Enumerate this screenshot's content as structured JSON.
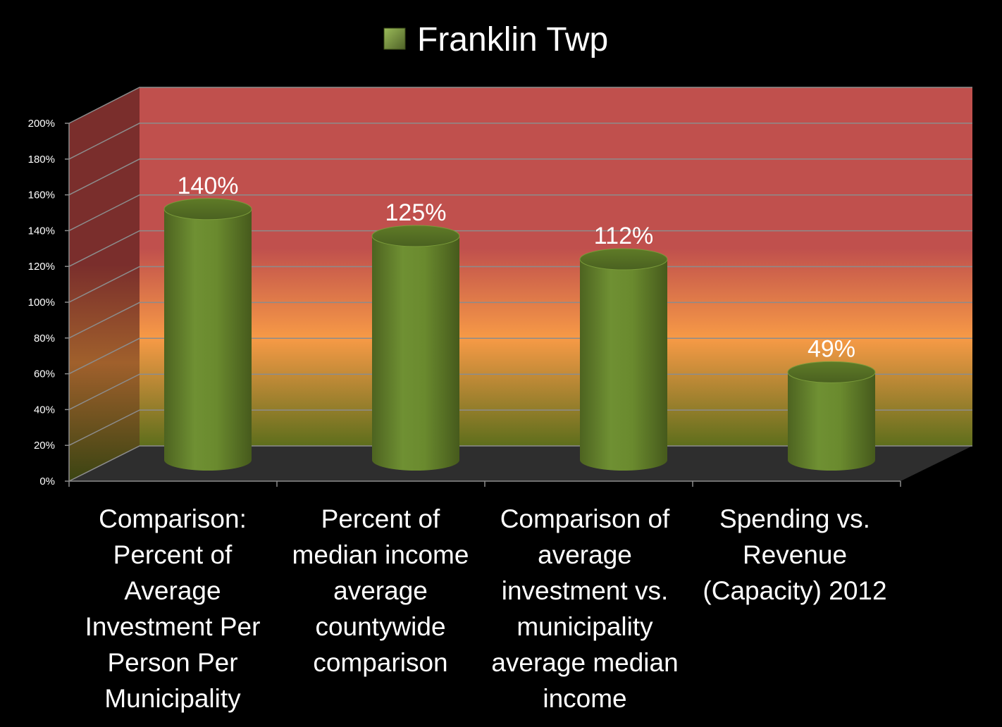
{
  "chart_data": {
    "type": "bar",
    "style": "3d-cylinder",
    "categories": [
      "Comparison: Percent of Average Investment Per Person Per Municipality",
      "Percent of median income average countywide comparison",
      "Comparison of average investment vs. municipality average median income",
      "Spending vs. Revenue (Capacity) 2012"
    ],
    "category_lines": [
      [
        "Comparison:",
        "Percent of",
        "Average",
        "Investment Per",
        "Person Per",
        "Municipality"
      ],
      [
        "Percent of",
        "median income",
        "average",
        "countywide",
        "comparison"
      ],
      [
        "Comparison of",
        "average",
        "investment vs.",
        "municipality",
        "average median",
        "income"
      ],
      [
        "Spending vs.",
        "Revenue",
        "(Capacity) 2012"
      ]
    ],
    "series": [
      {
        "name": "Franklin Twp",
        "values": [
          140,
          125,
          112,
          49
        ],
        "color": "#6a8a2e"
      }
    ],
    "data_labels": [
      "140%",
      "125%",
      "112%",
      "49%"
    ],
    "y_ticks": [
      "0%",
      "20%",
      "40%",
      "60%",
      "80%",
      "100%",
      "120%",
      "140%",
      "160%",
      "180%",
      "200%"
    ],
    "ylim": [
      0,
      200
    ],
    "grid": true,
    "legend_position": "top",
    "wall_gradient": [
      "#6b7a1f",
      "#f79a46",
      "#c0504d"
    ],
    "floor_color": "#2e2e2e"
  }
}
